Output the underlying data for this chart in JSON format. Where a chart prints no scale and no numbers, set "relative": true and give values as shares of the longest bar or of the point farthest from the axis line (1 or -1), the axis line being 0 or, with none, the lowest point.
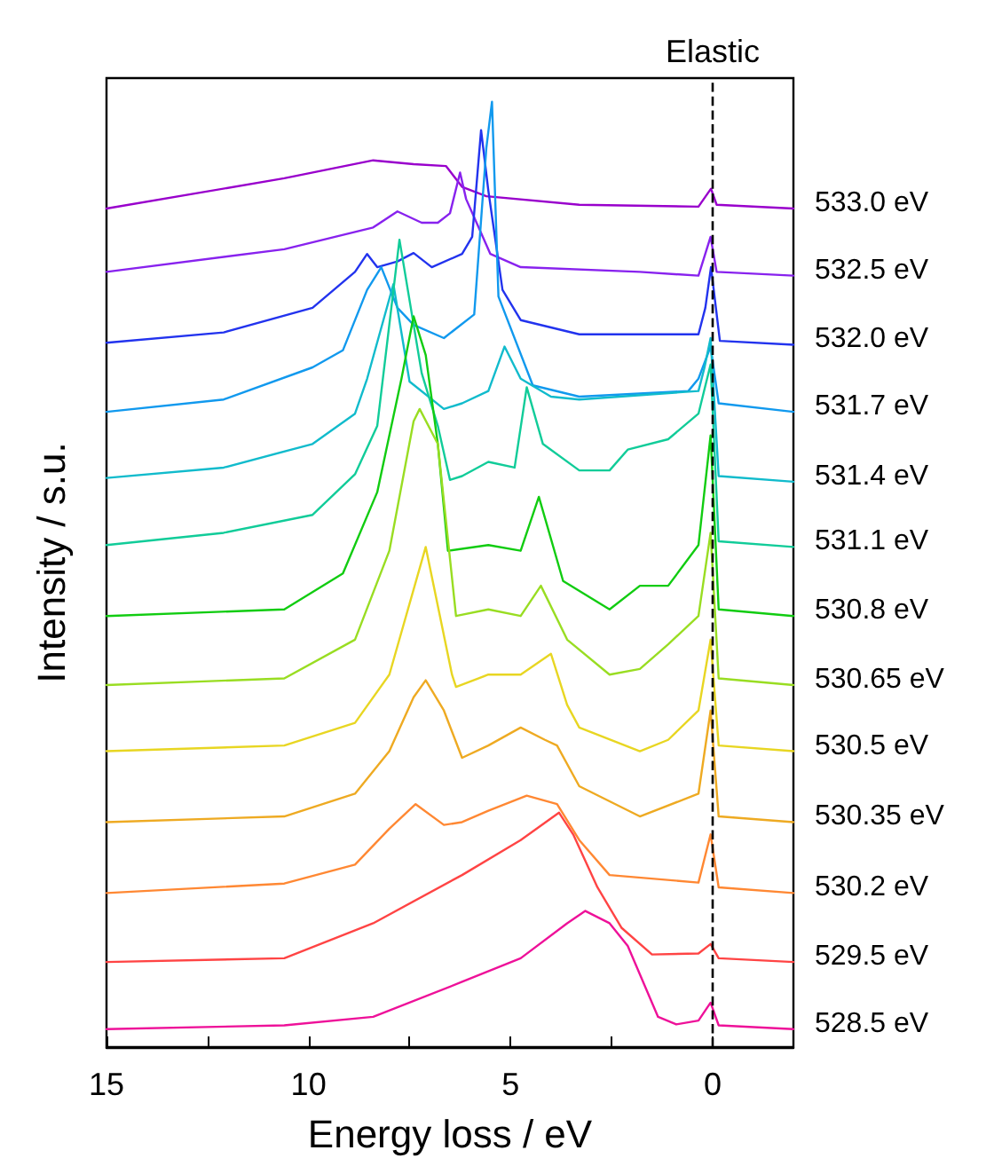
{
  "chart_data": {
    "type": "line",
    "xlabel": "Energy loss / eV",
    "ylabel": "Intensity / s.u.",
    "relative": true,
    "xlim": [
      15,
      -2
    ],
    "xticks": [
      15,
      {
        "value": 12.5,
        "label": null
      },
      10,
      {
        "value": 7.5,
        "label": null
      },
      5,
      {
        "value": 2.5,
        "label": null
      },
      0
    ],
    "tick_labels": "x",
    "grid": false,
    "legend": false,
    "marker": "none",
    "line_style": "solid",
    "ref_lines": [
      {
        "axis": "x",
        "value": 0,
        "label": "Elastic",
        "color": "#000000",
        "line_style": "dashed"
      }
    ],
    "series": [
      {
        "name": "533.0 eV",
        "color": "#9900cc",
        "x": [
          15,
          10.6,
          8.4,
          7.4,
          6.6,
          6.2,
          5.6,
          3.3,
          0.35,
          0.04,
          -0.1,
          -2
        ],
        "values": [
          0.887,
          0.919,
          0.938,
          0.934,
          0.932,
          0.91,
          0.9,
          0.891,
          0.889,
          0.908,
          0.891,
          0.887
        ]
      },
      {
        "name": "532.5 eV",
        "color": "#8822ee",
        "x": [
          15,
          10.6,
          8.4,
          7.8,
          7.2,
          6.8,
          6.5,
          6.25,
          6.1,
          5.5,
          4.75,
          1.8,
          0.35,
          0.05,
          -0.1,
          -2
        ],
        "values": [
          0.82,
          0.844,
          0.867,
          0.884,
          0.872,
          0.872,
          0.882,
          0.925,
          0.897,
          0.839,
          0.825,
          0.82,
          0.816,
          0.857,
          0.82,
          0.816
        ]
      },
      {
        "name": "532.0 eV",
        "color": "#2233ee",
        "x": [
          15,
          12.1,
          9.9,
          8.85,
          8.55,
          8.3,
          7.8,
          7.4,
          6.95,
          6.2,
          5.95,
          5.73,
          5.55,
          5.2,
          4.75,
          3.3,
          0.35,
          0.18,
          0.04,
          -0.18,
          -2
        ],
        "values": [
          0.745,
          0.756,
          0.782,
          0.82,
          0.839,
          0.825,
          0.831,
          0.84,
          0.825,
          0.839,
          0.857,
          0.97,
          0.906,
          0.801,
          0.769,
          0.754,
          0.754,
          0.782,
          0.825,
          0.747,
          0.743
        ]
      },
      {
        "name": "531.7 eV",
        "color": "#1199ee",
        "x": [
          15,
          12.1,
          9.9,
          9.15,
          8.55,
          8.2,
          7.8,
          7.4,
          6.65,
          5.9,
          5.6,
          5.46,
          5.3,
          4.45,
          3.3,
          0.6,
          0.35,
          0.05,
          -0.15,
          -2
        ],
        "values": [
          0.672,
          0.685,
          0.719,
          0.737,
          0.801,
          0.825,
          0.782,
          0.764,
          0.75,
          0.775,
          0.951,
          1.0,
          0.794,
          0.7,
          0.688,
          0.694,
          0.707,
          0.741,
          0.681,
          0.672
        ]
      },
      {
        "name": "531.4 eV",
        "color": "#11bbcc",
        "x": [
          15,
          12.1,
          9.9,
          8.85,
          8.55,
          7.9,
          7.5,
          6.65,
          6.2,
          5.55,
          5.15,
          4.75,
          4.0,
          3.3,
          0.35,
          0.2,
          0.05,
          -0.15,
          -2
        ],
        "values": [
          0.602,
          0.613,
          0.638,
          0.67,
          0.707,
          0.807,
          0.704,
          0.675,
          0.681,
          0.694,
          0.741,
          0.707,
          0.688,
          0.685,
          0.694,
          0.719,
          0.75,
          0.604,
          0.598
        ]
      },
      {
        "name": "531.1 eV",
        "color": "#11cc99",
        "x": [
          15,
          12.1,
          9.9,
          8.85,
          8.3,
          7.75,
          7.2,
          6.8,
          6.5,
          6.2,
          5.55,
          4.9,
          4.6,
          4.2,
          3.3,
          2.55,
          2.1,
          1.1,
          0.35,
          0.05,
          -0.15,
          -2
        ],
        "values": [
          0.531,
          0.544,
          0.563,
          0.606,
          0.657,
          0.854,
          0.713,
          0.657,
          0.6,
          0.604,
          0.619,
          0.613,
          0.698,
          0.638,
          0.61,
          0.61,
          0.632,
          0.643,
          0.67,
          0.722,
          0.535,
          0.529
        ]
      },
      {
        "name": "530.8 eV",
        "color": "#11cc11",
        "x": [
          15,
          10.6,
          9.15,
          8.3,
          7.7,
          7.4,
          7.1,
          6.8,
          6.55,
          5.55,
          4.75,
          4.3,
          3.7,
          2.55,
          1.8,
          1.1,
          0.35,
          0.05,
          -0.15,
          -2
        ],
        "values": [
          0.456,
          0.463,
          0.501,
          0.587,
          0.707,
          0.773,
          0.732,
          0.638,
          0.525,
          0.531,
          0.525,
          0.582,
          0.493,
          0.463,
          0.488,
          0.488,
          0.531,
          0.647,
          0.463,
          0.456
        ]
      },
      {
        "name": "530.65 eV",
        "color": "#99dd22",
        "x": [
          15,
          10.6,
          8.85,
          8.0,
          7.4,
          7.25,
          6.8,
          6.35,
          5.55,
          4.75,
          4.25,
          3.6,
          2.55,
          1.8,
          1.1,
          0.35,
          0.05,
          -0.15,
          -2
        ],
        "values": [
          0.383,
          0.39,
          0.431,
          0.525,
          0.662,
          0.675,
          0.638,
          0.456,
          0.463,
          0.456,
          0.488,
          0.431,
          0.394,
          0.4,
          0.426,
          0.456,
          0.544,
          0.39,
          0.383
        ]
      },
      {
        "name": "530.5 eV",
        "color": "#e8d622",
        "x": [
          15,
          10.6,
          8.85,
          8.0,
          7.1,
          6.45,
          6.35,
          5.55,
          4.75,
          4.0,
          3.6,
          3.3,
          1.8,
          1.1,
          0.35,
          0.05,
          -0.15,
          -2
        ],
        "values": [
          0.313,
          0.319,
          0.343,
          0.394,
          0.529,
          0.394,
          0.381,
          0.394,
          0.394,
          0.416,
          0.362,
          0.338,
          0.313,
          0.325,
          0.356,
          0.431,
          0.319,
          0.313
        ]
      },
      {
        "name": "530.35 eV",
        "color": "#eeaa22",
        "x": [
          15,
          10.6,
          8.85,
          8.0,
          7.4,
          7.1,
          6.65,
          6.2,
          5.55,
          4.75,
          4.15,
          3.85,
          3.3,
          1.8,
          0.35,
          0.05,
          -0.15,
          -2
        ],
        "values": [
          0.238,
          0.244,
          0.268,
          0.313,
          0.37,
          0.388,
          0.356,
          0.306,
          0.319,
          0.338,
          0.325,
          0.319,
          0.276,
          0.244,
          0.268,
          0.356,
          0.244,
          0.238
        ]
      },
      {
        "name": "530.2 eV",
        "color": "#ff8833",
        "x": [
          15,
          10.6,
          8.85,
          8.0,
          7.35,
          6.65,
          6.2,
          5.55,
          4.6,
          3.85,
          3.3,
          2.55,
          0.35,
          0.05,
          -0.15,
          -2
        ],
        "values": [
          0.163,
          0.173,
          0.193,
          0.231,
          0.257,
          0.235,
          0.238,
          0.25,
          0.266,
          0.257,
          0.219,
          0.182,
          0.174,
          0.225,
          0.169,
          0.163
        ]
      },
      {
        "name": "529.5 eV",
        "color": "#ff4444",
        "x": [
          15,
          10.6,
          8.4,
          6.2,
          4.75,
          3.8,
          3.45,
          2.85,
          2.25,
          1.5,
          0.35,
          0.05,
          -0.15,
          -2
        ],
        "values": [
          0.09,
          0.094,
          0.131,
          0.182,
          0.219,
          0.248,
          0.225,
          0.169,
          0.126,
          0.098,
          0.099,
          0.109,
          0.094,
          0.09
        ]
      },
      {
        "name": "528.5 eV",
        "color": "#ee1199",
        "x": [
          15,
          10.6,
          8.4,
          6.2,
          4.75,
          3.6,
          3.15,
          2.55,
          2.1,
          1.35,
          0.9,
          0.35,
          0.05,
          -0.15,
          -2
        ],
        "values": [
          0.019,
          0.023,
          0.032,
          0.069,
          0.094,
          0.131,
          0.144,
          0.131,
          0.107,
          0.032,
          0.024,
          0.028,
          0.047,
          0.023,
          0.019
        ]
      }
    ]
  }
}
